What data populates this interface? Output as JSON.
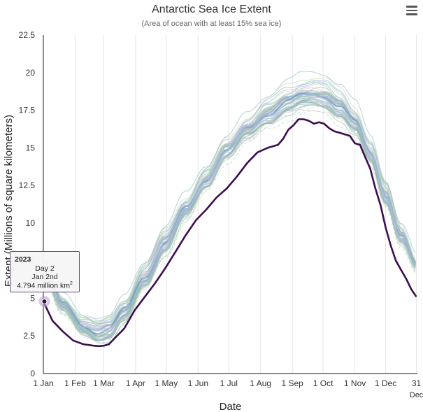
{
  "chart_data": {
    "type": "line",
    "title": "Antarctic Sea Ice Extent",
    "subtitle": "(Area of ocean with at least 15% sea ice)",
    "xlabel": "Date",
    "ylabel": "Extent (Millions of square kilometers)",
    "x_ticks": [
      "1 Jan",
      "1 Feb",
      "1 Mar",
      "1 Apr",
      "1 May",
      "1 Jun",
      "1 Jul",
      "1 Aug",
      "1 Sep",
      "1 Oct",
      "1 Nov",
      "1 Dec",
      "31 Dec"
    ],
    "x_tick_days": [
      1,
      32,
      60,
      91,
      121,
      152,
      182,
      213,
      244,
      274,
      305,
      335,
      365
    ],
    "y_ticks": [
      "0",
      "2.5",
      "5",
      "7.5",
      "10",
      "12.5",
      "15",
      "17.5",
      "20",
      "22.5"
    ],
    "ylim": [
      0,
      22.5
    ],
    "xlim": [
      1,
      366
    ],
    "grid": "vertical",
    "series": [
      {
        "name": "2023",
        "emphasis": true,
        "color": "#3b0f4f",
        "x": [
          1,
          10,
          20,
          30,
          40,
          50,
          55,
          60,
          65,
          70,
          80,
          90,
          100,
          110,
          120,
          130,
          140,
          150,
          160,
          170,
          180,
          190,
          200,
          210,
          220,
          230,
          235,
          240,
          245,
          250,
          255,
          260,
          265,
          270,
          275,
          280,
          285,
          290,
          295,
          300,
          305,
          310,
          315,
          320,
          325,
          330,
          335,
          340,
          345,
          350,
          355,
          360,
          365
        ],
        "values": [
          4.79,
          3.5,
          2.8,
          2.2,
          1.95,
          1.85,
          1.82,
          1.85,
          1.95,
          2.3,
          3.0,
          4.2,
          5.1,
          6.0,
          7.0,
          8.1,
          9.2,
          10.2,
          10.9,
          11.7,
          12.3,
          13.1,
          14.0,
          14.7,
          15.0,
          15.2,
          15.6,
          16.2,
          16.5,
          16.9,
          16.9,
          16.8,
          16.6,
          16.7,
          16.6,
          16.3,
          16.1,
          16.0,
          15.9,
          15.8,
          15.3,
          15.2,
          14.4,
          13.6,
          12.3,
          11.2,
          9.7,
          8.5,
          7.5,
          6.9,
          6.3,
          5.6,
          5.1
        ]
      }
    ],
    "other_years_count": 44,
    "tooltip": {
      "series": "2023",
      "day": "Day 2",
      "date": "Jan 2nd",
      "value": "4.794 million km",
      "unit_sup": "2"
    }
  },
  "ui": {
    "menu_icon": "hamburger-menu-icon"
  }
}
